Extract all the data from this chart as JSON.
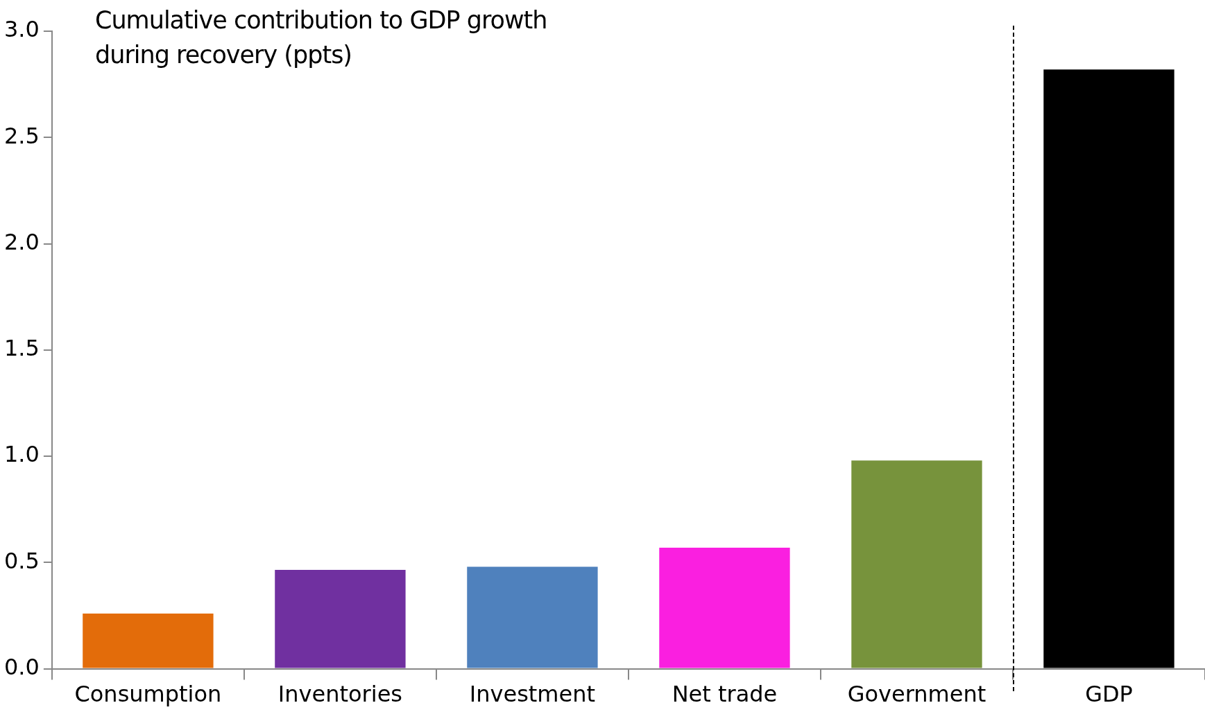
{
  "chart_data": {
    "type": "bar",
    "title": "Cumulative contribution to GDP growth during recovery (ppts)",
    "categories": [
      "Consumption",
      "Inventories",
      "Investment",
      "Net trade",
      "Government",
      "GDP"
    ],
    "values": [
      0.26,
      0.465,
      0.48,
      0.57,
      0.98,
      2.82
    ],
    "colors": [
      "#e36c0a",
      "#7030a0",
      "#4f81bd",
      "#fa1fe0",
      "#77933c",
      "#000000"
    ],
    "ylim": [
      0,
      3
    ],
    "yticks": [
      {
        "value": 0,
        "label": "0.0"
      },
      {
        "value": 0.5,
        "label": "0.5"
      },
      {
        "value": 1,
        "label": "1.0"
      },
      {
        "value": 1.5,
        "label": "1.5"
      },
      {
        "value": 2,
        "label": "2.0"
      },
      {
        "value": 2.5,
        "label": "2.5"
      },
      {
        "value": 3,
        "label": "3.0"
      }
    ],
    "grid": false
  }
}
